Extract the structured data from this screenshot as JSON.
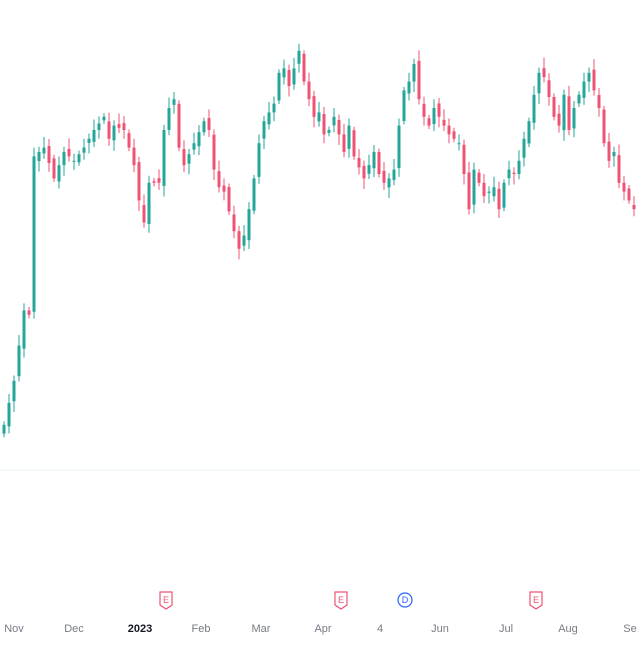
{
  "chart_data": {
    "type": "candlestick",
    "title": "",
    "xlabel": "",
    "ylabel": "",
    "x_tick_labels": [
      {
        "label": "Nov",
        "bold": false
      },
      {
        "label": "Dec",
        "bold": false
      },
      {
        "label": "2023",
        "bold": true
      },
      {
        "label": "Feb",
        "bold": false
      },
      {
        "label": "Mar",
        "bold": false
      },
      {
        "label": "Apr",
        "bold": false
      },
      {
        "label": "4",
        "bold": false
      },
      {
        "label": "Jun",
        "bold": false
      },
      {
        "label": "Jul",
        "bold": false
      },
      {
        "label": "Aug",
        "bold": false
      },
      {
        "label": "Se",
        "bold": false
      }
    ],
    "ylim": [
      0,
      100
    ],
    "grid": false,
    "colors": {
      "up": "#26a69a",
      "down": "#ef5373",
      "earnings": "#ef5373",
      "dividend": "#2962ff"
    },
    "events": [
      {
        "label": "E",
        "kind": "earnings",
        "after_tick": "2023"
      },
      {
        "label": "E",
        "kind": "earnings",
        "after_tick": "Mar"
      },
      {
        "label": "D",
        "kind": "dividend",
        "after_tick": "4"
      },
      {
        "label": "E",
        "kind": "earnings",
        "after_tick": "Jul"
      }
    ],
    "close_path": [
      [
        0,
        8
      ],
      [
        2,
        18
      ],
      [
        4,
        34
      ],
      [
        5,
        33
      ],
      [
        6,
        69
      ],
      [
        8,
        71
      ],
      [
        10,
        64
      ],
      [
        12,
        70
      ],
      [
        14,
        68
      ],
      [
        16,
        71
      ],
      [
        18,
        75
      ],
      [
        20,
        78
      ],
      [
        21,
        73
      ],
      [
        22,
        76
      ],
      [
        24,
        75
      ],
      [
        26,
        67
      ],
      [
        27,
        59
      ],
      [
        28,
        54
      ],
      [
        29,
        63
      ],
      [
        31,
        63
      ],
      [
        32,
        75
      ],
      [
        33,
        80
      ],
      [
        34,
        82
      ],
      [
        35,
        71
      ],
      [
        36,
        67
      ],
      [
        38,
        72
      ],
      [
        40,
        77
      ],
      [
        41,
        75
      ],
      [
        42,
        66
      ],
      [
        43,
        62
      ],
      [
        44,
        61
      ],
      [
        46,
        52
      ],
      [
        47,
        48
      ],
      [
        48,
        51
      ],
      [
        49,
        57
      ],
      [
        50,
        64
      ],
      [
        51,
        72
      ],
      [
        52,
        77
      ],
      [
        54,
        81
      ],
      [
        55,
        88
      ],
      [
        56,
        89
      ],
      [
        57,
        85
      ],
      [
        58,
        89
      ],
      [
        59,
        93
      ],
      [
        60,
        86
      ],
      [
        62,
        78
      ],
      [
        63,
        79
      ],
      [
        64,
        74
      ],
      [
        65,
        75
      ],
      [
        66,
        78
      ],
      [
        68,
        70
      ],
      [
        69,
        76
      ],
      [
        70,
        69
      ],
      [
        72,
        64
      ],
      [
        73,
        67
      ],
      [
        74,
        70
      ],
      [
        75,
        65
      ],
      [
        76,
        63
      ],
      [
        77,
        64
      ],
      [
        78,
        66
      ],
      [
        79,
        76
      ],
      [
        80,
        84
      ],
      [
        81,
        86
      ],
      [
        82,
        90
      ],
      [
        83,
        82
      ],
      [
        84,
        78
      ],
      [
        85,
        76
      ],
      [
        86,
        80
      ],
      [
        88,
        76
      ],
      [
        89,
        74
      ],
      [
        91,
        72
      ],
      [
        92,
        65
      ],
      [
        93,
        57
      ],
      [
        94,
        66
      ],
      [
        95,
        63
      ],
      [
        96,
        60
      ],
      [
        97,
        61
      ],
      [
        98,
        62
      ],
      [
        99,
        57
      ],
      [
        100,
        63
      ],
      [
        101,
        66
      ],
      [
        102,
        65
      ],
      [
        103,
        68
      ],
      [
        104,
        73
      ],
      [
        105,
        77
      ],
      [
        106,
        83
      ],
      [
        107,
        88
      ],
      [
        108,
        87
      ],
      [
        110,
        78
      ],
      [
        111,
        76
      ],
      [
        112,
        83
      ],
      [
        113,
        75
      ],
      [
        114,
        80
      ],
      [
        116,
        86
      ],
      [
        117,
        88
      ],
      [
        118,
        84
      ],
      [
        119,
        80
      ],
      [
        120,
        72
      ],
      [
        121,
        68
      ],
      [
        122,
        70
      ],
      [
        123,
        63
      ],
      [
        124,
        61
      ],
      [
        125,
        59
      ],
      [
        126,
        57
      ]
    ]
  }
}
